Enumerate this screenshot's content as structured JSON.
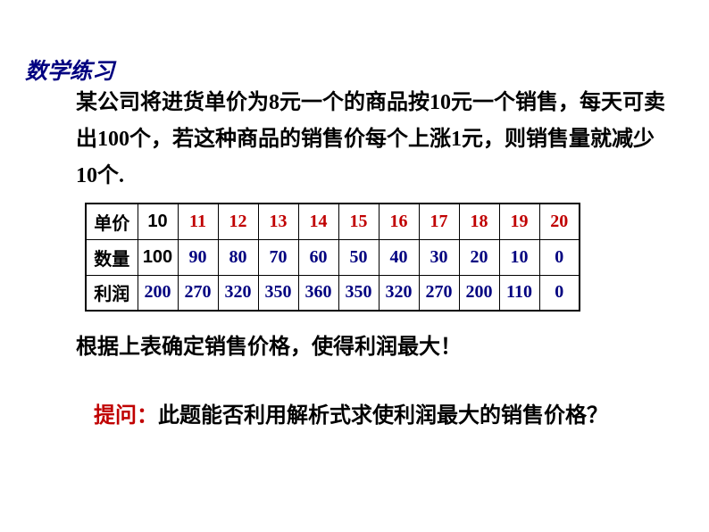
{
  "title": "数学练习",
  "problem": "某公司将进货单价为8元一个的商品按10元一个销售，每天可卖出100个，若这种商品的销售价每个上涨1元，则销售量就减少10个.",
  "table": {
    "row_labels": [
      "单价",
      "数量",
      "利润"
    ],
    "base_col": {
      "price": "10",
      "qty": "100",
      "profit": "200"
    },
    "prices": [
      "11",
      "12",
      "13",
      "14",
      "15",
      "16",
      "17",
      "18",
      "19",
      "20"
    ],
    "qtys": [
      "90",
      "80",
      "70",
      "60",
      "50",
      "40",
      "30",
      "20",
      "10",
      "0"
    ],
    "profits": [
      "270",
      "320",
      "350",
      "360",
      "350",
      "320",
      "270",
      "200",
      "110",
      "0"
    ],
    "colors": {
      "header_text": "#000000",
      "base_text": "#000000",
      "price_text": "#c00000",
      "qty_text": "#000080",
      "profit_text": "#000080",
      "border": "#000000"
    },
    "font_sizes": {
      "header": 22,
      "cell": 20,
      "profit_cell": 18
    }
  },
  "conclusion": "根据上表确定销售价格，使得利润最大！",
  "question_label": "提问：",
  "question_text": "此题能否利用解析式求使利润最大的销售价格？",
  "colors": {
    "title": "#000080",
    "body_text": "#000000",
    "question_label": "#c00000",
    "background": "#ffffff"
  },
  "fonts": {
    "title_size": 25,
    "body_size": 24
  }
}
